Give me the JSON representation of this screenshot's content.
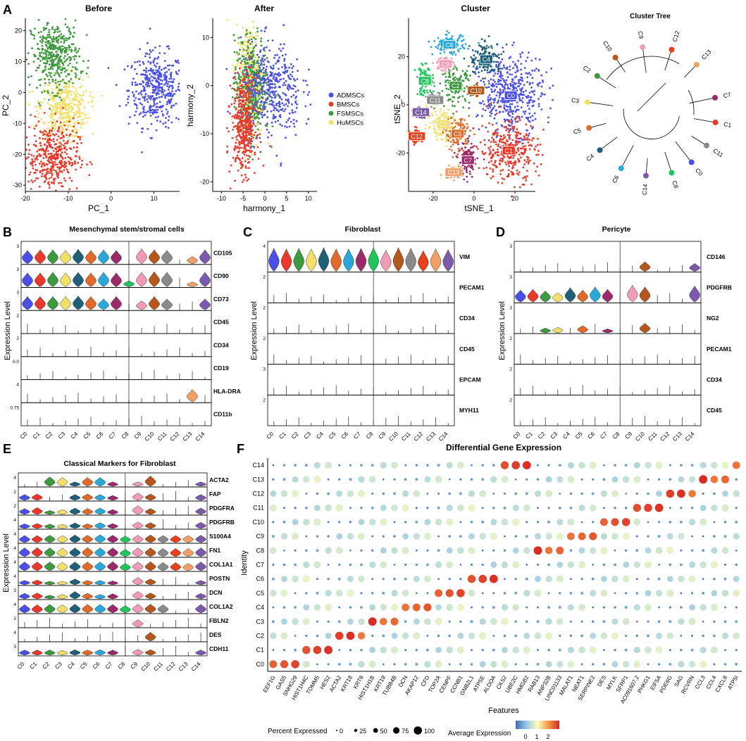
{
  "panel_letters": [
    "A",
    "B",
    "C",
    "D",
    "E",
    "F"
  ],
  "colors": {
    "clusters": [
      "#4B4FE8",
      "#E8392C",
      "#3E9A3E",
      "#F2E06A",
      "#1F5F78",
      "#E06A2A",
      "#2BA8D9",
      "#9B2A6A",
      "#1FC55A",
      "#F19CB4",
      "#B5561A",
      "#8A8A8A",
      "#E8411E",
      "#F2A066",
      "#7B5AAB"
    ],
    "samples": {
      "ADMSCs": "#4B4FE8",
      "BMSCs": "#E8392C",
      "FSMSCs": "#3E9A3E",
      "HuMSCs": "#F2E06A"
    }
  },
  "chart_data": [
    {
      "id": "A1",
      "type": "scatter",
      "title": "Before",
      "xlabel": "PC_1",
      "ylabel": "PC_2",
      "xlim": [
        -20,
        16
      ],
      "ylim": [
        -32,
        24
      ],
      "xticks": [
        -20,
        -10,
        0,
        10
      ],
      "yticks": [
        -30,
        -20,
        -10,
        0,
        10,
        20
      ],
      "legend_position": "none",
      "clouds": [
        {
          "group": "ADMSCs",
          "cx": 10.5,
          "cy": 1,
          "sx": 3.2,
          "sy": 6
        },
        {
          "group": "HuMSCs",
          "cx": -11,
          "cy": -5,
          "sx": 2.8,
          "sy": 5
        },
        {
          "group": "FSMSCs",
          "cx": -13,
          "cy": 12,
          "sx": 2.8,
          "sy": 5.5
        },
        {
          "group": "BMSCs",
          "cx": -14,
          "cy": -21,
          "sx": 3.2,
          "sy": 5.5
        }
      ]
    },
    {
      "id": "A2",
      "type": "scatter",
      "title": "After",
      "xlabel": "harmony_1",
      "ylabel": "harmony_2",
      "xlim": [
        -12,
        12
      ],
      "ylim": [
        -22,
        14
      ],
      "xticks": [
        -10,
        -5,
        0,
        5,
        10
      ],
      "yticks": [
        -20,
        -10,
        0,
        10
      ],
      "legend_position": "right",
      "legend_entries": [
        "ADMSCs",
        "BMSCs",
        "FSMSCs",
        "HuMSCs"
      ],
      "clouds": [
        {
          "group": "HuMSCs",
          "cx": -3.5,
          "cy": 1,
          "sx": 1.5,
          "sy": 6
        },
        {
          "group": "FSMSCs",
          "cx": -3,
          "cy": 0,
          "sx": 2,
          "sy": 5
        },
        {
          "group": "ADMSCs",
          "cx": 1.5,
          "cy": -1,
          "sx": 3.5,
          "sy": 5
        },
        {
          "group": "BMSCs",
          "cx": -4.8,
          "cy": -8,
          "sx": 1.4,
          "sy": 5
        }
      ]
    },
    {
      "id": "A3",
      "type": "scatter",
      "title": "Cluster",
      "xlabel": "tSNE_1",
      "ylabel": "tSNE_2",
      "xlim": [
        -32,
        30
      ],
      "ylim": [
        -36,
        36
      ],
      "xticks": [
        -20,
        0,
        20
      ],
      "yticks": [
        -20,
        0,
        20
      ],
      "legend_position": "none",
      "clusters": [
        {
          "label": "C0",
          "x": 18,
          "y": 4,
          "sx": 8,
          "sy": 8
        },
        {
          "label": "C1",
          "x": 17,
          "y": -19,
          "sx": 7,
          "sy": 6.5
        },
        {
          "label": "C2",
          "x": -9,
          "y": 8,
          "sx": 3.5,
          "sy": 3.5
        },
        {
          "label": "C3",
          "x": -15,
          "y": -8,
          "sx": 4,
          "sy": 3.5
        },
        {
          "label": "C4",
          "x": 6,
          "y": 19,
          "sx": 4,
          "sy": 3.5
        },
        {
          "label": "C5",
          "x": -8,
          "y": -12,
          "sx": 3,
          "sy": 3.5
        },
        {
          "label": "C6",
          "x": -12,
          "y": 25,
          "sx": 4,
          "sy": 2
        },
        {
          "label": "C7",
          "x": -3,
          "y": -23,
          "sx": 2.2,
          "sy": 4
        },
        {
          "label": "C8",
          "x": -24,
          "y": 10,
          "sx": 2.2,
          "sy": 3
        },
        {
          "label": "C9",
          "x": -14,
          "y": 17,
          "sx": 2,
          "sy": 1.5
        },
        {
          "label": "C10",
          "x": 1,
          "y": 6,
          "sx": 1.5,
          "sy": 1.2
        },
        {
          "label": "C11",
          "x": -19,
          "y": 2,
          "sx": 1.5,
          "sy": 1.2
        },
        {
          "label": "C12",
          "x": -28,
          "y": -13,
          "sx": 1.5,
          "sy": 1.5
        },
        {
          "label": "C13",
          "x": -10,
          "y": -28,
          "sx": 2,
          "sy": 1.2
        },
        {
          "label": "C14",
          "x": -26,
          "y": -3,
          "sx": 1.5,
          "sy": 1.2
        }
      ]
    },
    {
      "id": "A4",
      "type": "dendrogram",
      "title": "Cluster Tree",
      "leaves": [
        "C7",
        "C1",
        "C11",
        "C0",
        "C8",
        "C14",
        "C6",
        "C4",
        "C5",
        "C3",
        "C2",
        "C10",
        "C9",
        "C12",
        "C13"
      ]
    },
    {
      "id": "B",
      "type": "violin",
      "title": "Mesenchymal stem/stromal cells",
      "ylabel": "Expression Level",
      "categories": [
        "C0",
        "C1",
        "C2",
        "C3",
        "C4",
        "C5",
        "C6",
        "C7",
        "C8",
        "C9",
        "C10",
        "C11",
        "C12",
        "C13",
        "C14"
      ],
      "genes": [
        "CD105",
        "CD90",
        "CD73",
        "CD45",
        "CD34",
        "CD19",
        "HLA-DRA",
        "CD11b"
      ],
      "ymax": [
        "3",
        "3",
        "3",
        "2",
        "2",
        "0.0",
        "4",
        "0.75"
      ],
      "values": [
        [
          2.2,
          2.3,
          2.3,
          2.2,
          2.4,
          2.2,
          2.3,
          2.2,
          0,
          2.5,
          2.3,
          2.2,
          0,
          1.2,
          2.3
        ],
        [
          2.3,
          2.3,
          2.4,
          2.3,
          2.4,
          2.3,
          2.4,
          2.3,
          1.0,
          2.4,
          2.5,
          2.4,
          0,
          0.8,
          2.4
        ],
        [
          2.2,
          2.2,
          2.2,
          2.2,
          2.3,
          2.2,
          1.8,
          2.2,
          0,
          1.5,
          2.2,
          1.8,
          0,
          0,
          1.8
        ],
        [
          0,
          0,
          0,
          0,
          0,
          0,
          0,
          0,
          0,
          0,
          0,
          0,
          0,
          0,
          0
        ],
        [
          0,
          0,
          0,
          0,
          0,
          0,
          0,
          0,
          0,
          0,
          0,
          0,
          0,
          0,
          0
        ],
        [
          0,
          0,
          0,
          0,
          0,
          0,
          0,
          0,
          0,
          0,
          0,
          0,
          0,
          0,
          0
        ],
        [
          0,
          0,
          0,
          0,
          0,
          0,
          0,
          0,
          0,
          0,
          0,
          0,
          0,
          2.6,
          0
        ],
        [
          0,
          0,
          0,
          0,
          0,
          0,
          0,
          0,
          0,
          0,
          0,
          0,
          0,
          0,
          0
        ]
      ]
    },
    {
      "id": "C",
      "type": "violin",
      "title": "Fibroblast",
      "ylabel": "Expression Level",
      "categories": [
        "C0",
        "C1",
        "C2",
        "C3",
        "C4",
        "C5",
        "C6",
        "C7",
        "C8",
        "C9",
        "C10",
        "C11",
        "C12",
        "C13",
        "C14"
      ],
      "genes": [
        "VIM",
        "PECAM1",
        "CD34",
        "CD45",
        "EPCAM",
        "MYH11"
      ],
      "ymax": [
        "4",
        "2",
        "2",
        "2",
        "3",
        "2"
      ],
      "values": [
        [
          3.6,
          3.5,
          3.6,
          3.5,
          3.7,
          3.5,
          3.5,
          3.6,
          3.7,
          3.3,
          3.7,
          3.6,
          3.2,
          3.5,
          3.4
        ],
        [
          0,
          0,
          0,
          0,
          0,
          0,
          0,
          0,
          0,
          0,
          0,
          0,
          0,
          0,
          0
        ],
        [
          0,
          0,
          0,
          0,
          0,
          0,
          0,
          0,
          0,
          0,
          0,
          0,
          0,
          0,
          0
        ],
        [
          0,
          0,
          0,
          0,
          0,
          0,
          0,
          0,
          0,
          0,
          0,
          0,
          0,
          0,
          0
        ],
        [
          0,
          0,
          0,
          0,
          0,
          0,
          0,
          0,
          0,
          0,
          0,
          0,
          0,
          0,
          0
        ],
        [
          0,
          0,
          0,
          0,
          0,
          0,
          0,
          0,
          0,
          0,
          0,
          0,
          0,
          0,
          0
        ]
      ]
    },
    {
      "id": "D",
      "type": "violin",
      "title": "Pericyte",
      "ylabel": "Expression Level",
      "categories": [
        "C0",
        "C1",
        "C2",
        "C3",
        "C4",
        "C5",
        "C6",
        "C7",
        "C8",
        "C9",
        "C10",
        "C11",
        "C12",
        "C13",
        "C14"
      ],
      "genes": [
        "CD146",
        "PDGFRB",
        "NG2",
        "PECAM1",
        "CD34",
        "CD45"
      ],
      "ymax": [
        "3",
        "3",
        "3",
        "2",
        "2",
        "2"
      ],
      "values": [
        [
          0,
          0,
          0,
          0,
          0,
          0,
          0,
          0,
          0,
          0,
          1.2,
          0,
          0,
          0,
          1.0
        ],
        [
          1.5,
          1.6,
          1.4,
          1.2,
          1.8,
          1.5,
          1.9,
          1.6,
          0,
          2.1,
          1.9,
          0,
          0,
          0,
          2.0
        ],
        [
          0,
          0,
          0.6,
          0.7,
          0,
          0.9,
          0,
          0.5,
          0,
          0,
          1.2,
          0,
          0,
          0,
          0
        ],
        [
          0,
          0,
          0,
          0,
          0,
          0,
          0,
          0,
          0,
          0,
          0,
          0,
          0,
          0,
          0
        ],
        [
          0,
          0,
          0,
          0,
          0,
          0,
          0,
          0,
          0,
          0,
          0,
          0,
          0,
          0,
          0
        ],
        [
          0,
          0,
          0,
          0,
          0,
          0,
          0,
          0,
          0,
          0,
          0,
          0,
          0,
          0,
          0
        ]
      ]
    },
    {
      "id": "E",
      "type": "violin",
      "title": "Classical Markers for Fibroblast",
      "ylabel": "Expression Level",
      "categories": [
        "C0",
        "C1",
        "C2",
        "C3",
        "C4",
        "C5",
        "C6",
        "C7",
        "C8",
        "C9",
        "C10",
        "C11",
        "C12",
        "C13",
        "C14"
      ],
      "genes": [
        "ACTA2",
        "FAP",
        "PDGFRA",
        "PDGFRB",
        "S100A4",
        "FN1",
        "COL1A1",
        "POSTN",
        "DCN",
        "COL1A2",
        "FBLN2",
        "DES",
        "CDH11"
      ],
      "ymax": [
        "4",
        "2",
        "2",
        "4",
        "4",
        "4",
        "4",
        "4",
        "3",
        "4",
        "2",
        "4",
        "3"
      ],
      "values": [
        [
          0,
          0,
          3.2,
          3.0,
          1.5,
          3.0,
          3.0,
          1.5,
          0,
          1.5,
          3.5,
          0,
          0,
          0,
          1.5
        ],
        [
          1.2,
          1.3,
          0,
          0,
          1.2,
          1.3,
          1.2,
          1.0,
          0,
          1.5,
          1.3,
          0,
          0,
          0,
          1.2
        ],
        [
          1.2,
          1.4,
          0.8,
          1.0,
          1.3,
          1.2,
          1.3,
          1.0,
          0,
          1.8,
          1.2,
          0,
          0,
          0,
          1.3
        ],
        [
          1.6,
          1.7,
          1.5,
          1.4,
          1.9,
          1.6,
          2.0,
          1.7,
          0,
          2.2,
          2.0,
          0,
          0,
          0,
          2.1
        ],
        [
          2.4,
          2.4,
          2.5,
          2.4,
          2.6,
          2.5,
          2.7,
          2.5,
          2.2,
          2.5,
          2.6,
          2.4,
          2.4,
          2.4,
          2.5
        ],
        [
          3.0,
          3.1,
          3.0,
          2.9,
          3.0,
          3.1,
          3.0,
          3.0,
          2.5,
          3.0,
          3.0,
          2.8,
          2.8,
          2.8,
          3.0
        ],
        [
          3.0,
          3.0,
          3.0,
          2.9,
          3.0,
          3.0,
          3.0,
          3.1,
          2.5,
          3.0,
          3.1,
          2.8,
          2.8,
          2.5,
          3.0
        ],
        [
          1.5,
          1.6,
          1.2,
          1.2,
          2.0,
          1.5,
          1.5,
          1.3,
          0,
          2.5,
          2.0,
          0,
          0,
          0,
          1.5
        ],
        [
          1.5,
          1.6,
          1.0,
          1.2,
          2.0,
          1.5,
          1.2,
          1.4,
          0,
          2.0,
          1.6,
          0,
          0,
          0,
          1.5
        ],
        [
          2.8,
          2.8,
          2.9,
          2.8,
          3.0,
          2.9,
          2.9,
          2.9,
          2.5,
          3.0,
          3.0,
          2.8,
          0,
          0,
          2.9
        ],
        [
          0,
          0,
          0,
          0,
          0,
          0,
          0,
          0,
          0,
          1.5,
          0,
          0,
          0,
          0,
          0
        ],
        [
          0,
          0,
          0,
          0,
          0,
          0,
          0,
          0,
          0,
          0,
          3.0,
          0,
          0,
          0,
          0
        ],
        [
          1.4,
          1.4,
          1.4,
          1.3,
          1.5,
          1.4,
          1.5,
          1.4,
          0,
          1.6,
          1.5,
          0,
          0,
          0,
          1.4
        ]
      ]
    },
    {
      "id": "F",
      "type": "dot",
      "title": "Differential Gene Expression",
      "xlabel": "Features",
      "ylabel": "Identity",
      "identities": [
        "C14",
        "C13",
        "C12",
        "C11",
        "C10",
        "C9",
        "C8",
        "C7",
        "C6",
        "C5",
        "C4",
        "C3",
        "C2",
        "C1",
        "C0"
      ],
      "features": [
        "EEF1G",
        "GAS5",
        "SNHG29",
        "HIST1H4C",
        "TOMM5",
        "HES2",
        "ACTA2",
        "KRT18",
        "KRT8",
        "HIST1H1B",
        "KRT19",
        "TUBB4B",
        "DCN",
        "AKAP12",
        "CFD",
        "TOP2A",
        "CENPF",
        "CCNB1",
        "GNB2L1",
        "ATP5E",
        "ALDOA",
        "CKS2",
        "UBE2C",
        "HMGB2",
        "RAB13",
        "ANP32B",
        "LINC01133",
        "MALAT1",
        "NEAT1",
        "SERPINE2",
        "DES",
        "MYLK",
        "SFRP1",
        "AC091607.2",
        "PHKG1",
        "EIF5A",
        "PDE6G",
        "SAG",
        "RCVRN",
        "CCL3",
        "CCL4",
        "CXCL8",
        "ATP5I"
      ],
      "legend_size_title": "Percent Expressed",
      "legend_sizes": [
        "0",
        "25",
        "50",
        "75",
        "100"
      ],
      "legend_color_title": "Average Expression",
      "legend_color_ticks": [
        "0",
        "1",
        "2"
      ]
    }
  ]
}
